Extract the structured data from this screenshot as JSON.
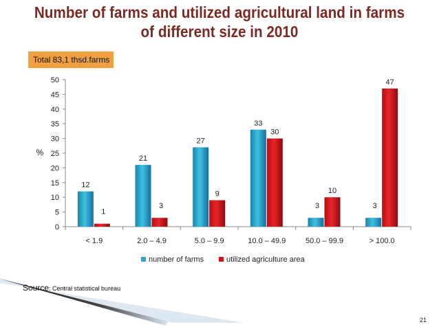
{
  "slide": {
    "title_line1": "Number of farms and utilized agricultural land in farms",
    "title_line2": "of different size in 2010",
    "total_box": "Total 83,1 thsd.farms",
    "source_label": "Source",
    "source_text": ": Central statistical bureau",
    "page_number": "21"
  },
  "chart_data": {
    "type": "bar",
    "ylabel": "%",
    "ylim": [
      0,
      50
    ],
    "yticks": [
      0,
      5,
      10,
      15,
      20,
      25,
      30,
      35,
      40,
      45,
      50
    ],
    "categories": [
      "< 1.9",
      "2.0 – 4.9",
      "5.0 – 9.9",
      "10.0 – 49.9",
      "50.0 – 99.9",
      "> 100.0"
    ],
    "series": [
      {
        "name": "number of farms",
        "values": [
          12,
          21,
          27,
          33,
          3,
          3
        ],
        "color": "#2aa6c8"
      },
      {
        "name": "utilized agriculture area",
        "values": [
          1,
          3,
          9,
          30,
          10,
          47
        ],
        "color": "#d0141a"
      }
    ],
    "grid": false,
    "legend_position": "bottom"
  }
}
